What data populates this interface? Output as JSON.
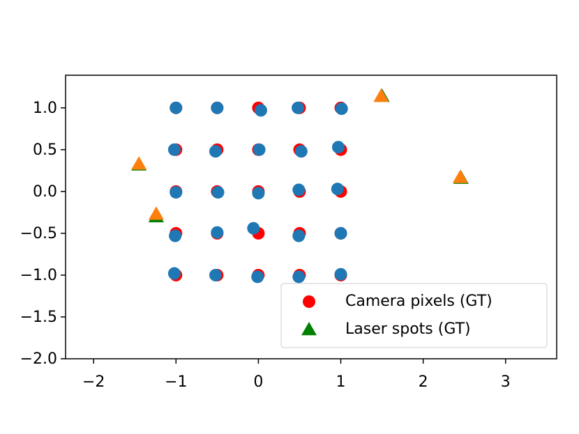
{
  "chart_data": {
    "type": "scatter",
    "xlim": [
      -2.34,
      3.62
    ],
    "ylim": [
      -2.0,
      1.39
    ],
    "xticks": [
      {
        "value": -2,
        "label": "−2"
      },
      {
        "value": -1,
        "label": "−1"
      },
      0,
      1,
      2,
      3
    ],
    "yticks": [
      {
        "value": -2.0,
        "label": "−2.0"
      },
      {
        "value": -1.5,
        "label": "−1.5"
      },
      {
        "value": -1.0,
        "label": "−1.0"
      },
      {
        "value": -0.5,
        "label": "−0.5"
      },
      {
        "value": 0.0,
        "label": "0.0"
      },
      0.5,
      {
        "value": 1.0,
        "label": "1.0"
      }
    ],
    "legend": "lower right",
    "series": [
      {
        "name": "Camera pixels (GT)",
        "color": "#ff0000",
        "marker": "circle",
        "x": [
          -1,
          -0.5,
          0,
          0.5,
          1,
          -1,
          -0.5,
          0,
          0.5,
          1,
          -1,
          -0.5,
          0,
          0.5,
          1,
          -1,
          -0.5,
          0,
          0.5,
          1,
          -1,
          -0.5,
          0,
          0.5,
          1
        ],
        "values": [
          1,
          1,
          1,
          1,
          1,
          0.5,
          0.5,
          0.5,
          0.5,
          0.5,
          0,
          0,
          0,
          0,
          0,
          -0.5,
          -0.5,
          -0.5,
          -0.5,
          -0.5,
          -1,
          -1,
          -1,
          -1,
          -1
        ]
      },
      {
        "color": "#1f77b4",
        "marker": "circle",
        "x": [
          -1.0,
          -0.5,
          0.03,
          0.48,
          1.01,
          -1.02,
          -0.52,
          0.01,
          0.52,
          0.97,
          -1.0,
          -0.49,
          0.0,
          0.49,
          0.96,
          -1.01,
          -0.5,
          -0.06,
          0.49,
          1.0,
          -1.02,
          -0.52,
          -0.01,
          0.49,
          1.0
        ],
        "values": [
          1.0,
          1.0,
          0.97,
          1.0,
          0.99,
          0.5,
          0.48,
          0.5,
          0.48,
          0.53,
          -0.01,
          -0.01,
          -0.02,
          0.02,
          0.03,
          -0.53,
          -0.49,
          -0.44,
          -0.53,
          -0.5,
          -0.98,
          -1.0,
          -1.02,
          -1.02,
          -0.99
        ]
      },
      {
        "name": "Laser spots (GT)",
        "color": "#008000",
        "marker": "triangle",
        "x": [
          -1.45,
          -1.24,
          1.5,
          2.46
        ],
        "values": [
          0.32,
          -0.3,
          1.14,
          0.16
        ]
      },
      {
        "color": "#ff7f0e",
        "marker": "triangle",
        "x": [
          -1.45,
          -1.24,
          1.49,
          2.45
        ],
        "values": [
          0.33,
          -0.27,
          1.14,
          0.17
        ]
      }
    ]
  }
}
